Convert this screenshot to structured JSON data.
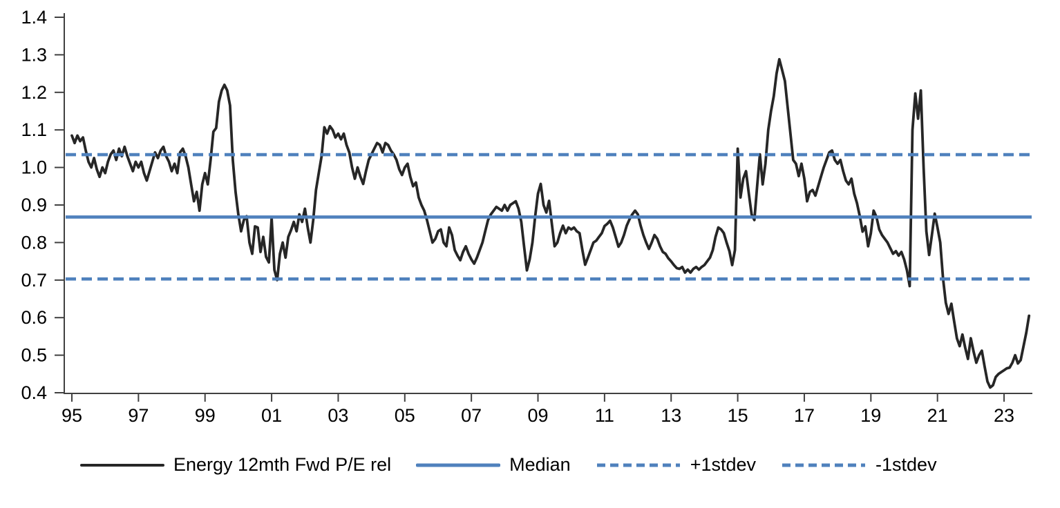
{
  "chart_data": {
    "type": "line",
    "title": "",
    "xlabel": "",
    "ylabel": "",
    "grid": false,
    "x_axis": {
      "tick_labels": [
        "95",
        "97",
        "99",
        "01",
        "03",
        "05",
        "07",
        "09",
        "11",
        "13",
        "15",
        "17",
        "19",
        "21",
        "23"
      ],
      "tick_years": [
        1995,
        1997,
        1999,
        2001,
        2003,
        2005,
        2007,
        2009,
        2011,
        2013,
        2015,
        2017,
        2019,
        2021,
        2023
      ],
      "range": [
        1994.78,
        2023.95
      ]
    },
    "y_axis": {
      "min": 0.4,
      "max": 1.4,
      "step": 0.1,
      "tick_labels": [
        "0.4",
        "0.5",
        "0.6",
        "0.7",
        "0.8",
        "0.9",
        "1.0",
        "1.1",
        "1.2",
        "1.3",
        "1.4"
      ]
    },
    "legend": {
      "position": "bottom"
    },
    "colors": {
      "series": "#262626",
      "bands": "#4F81BD",
      "axis": "#404040"
    },
    "series": [
      {
        "name": "Energy 12mth Fwd P/E rel",
        "kind": "line",
        "style": "solid",
        "color": "#262626",
        "start_year": 1995,
        "points_per_year": 12,
        "values": [
          1.085,
          1.065,
          1.085,
          1.07,
          1.08,
          1.045,
          1.015,
          1.0,
          1.025,
          0.995,
          0.975,
          1.0,
          0.985,
          1.015,
          1.035,
          1.045,
          1.02,
          1.05,
          1.03,
          1.055,
          1.03,
          1.01,
          0.99,
          1.015,
          1.0,
          1.015,
          0.985,
          0.965,
          0.99,
          1.015,
          1.04,
          1.025,
          1.045,
          1.055,
          1.03,
          1.015,
          0.99,
          1.01,
          0.985,
          1.04,
          1.05,
          1.03,
          1.0,
          0.955,
          0.91,
          0.935,
          0.885,
          0.955,
          0.985,
          0.955,
          1.02,
          1.095,
          1.105,
          1.175,
          1.205,
          1.22,
          1.205,
          1.165,
          1.02,
          0.935,
          0.875,
          0.83,
          0.86,
          0.87,
          0.8,
          0.77,
          0.843,
          0.84,
          0.775,
          0.815,
          0.762,
          0.747,
          0.865,
          0.727,
          0.7,
          0.77,
          0.8,
          0.76,
          0.815,
          0.833,
          0.855,
          0.83,
          0.875,
          0.855,
          0.89,
          0.84,
          0.8,
          0.86,
          0.94,
          0.985,
          1.03,
          1.107,
          1.09,
          1.11,
          1.1,
          1.08,
          1.09,
          1.075,
          1.09,
          1.06,
          1.04,
          1.0,
          0.97,
          1.0,
          0.975,
          0.956,
          0.99,
          1.02,
          1.035,
          1.05,
          1.065,
          1.06,
          1.04,
          1.065,
          1.06,
          1.045,
          1.035,
          1.02,
          0.995,
          0.98,
          1.0,
          1.01,
          0.975,
          0.95,
          0.96,
          0.92,
          0.9,
          0.885,
          0.86,
          0.83,
          0.8,
          0.81,
          0.83,
          0.835,
          0.8,
          0.79,
          0.84,
          0.82,
          0.78,
          0.765,
          0.753,
          0.775,
          0.79,
          0.77,
          0.755,
          0.744,
          0.76,
          0.78,
          0.8,
          0.83,
          0.86,
          0.875,
          0.885,
          0.895,
          0.89,
          0.885,
          0.9,
          0.885,
          0.9,
          0.905,
          0.91,
          0.89,
          0.855,
          0.79,
          0.726,
          0.755,
          0.8,
          0.87,
          0.93,
          0.956,
          0.9,
          0.88,
          0.911,
          0.85,
          0.79,
          0.8,
          0.825,
          0.845,
          0.825,
          0.84,
          0.835,
          0.84,
          0.83,
          0.825,
          0.78,
          0.741,
          0.76,
          0.78,
          0.8,
          0.805,
          0.815,
          0.825,
          0.844,
          0.85,
          0.858,
          0.84,
          0.815,
          0.789,
          0.8,
          0.82,
          0.845,
          0.862,
          0.875,
          0.885,
          0.875,
          0.845,
          0.82,
          0.8,
          0.783,
          0.8,
          0.82,
          0.81,
          0.79,
          0.775,
          0.77,
          0.758,
          0.75,
          0.74,
          0.732,
          0.73,
          0.735,
          0.72,
          0.728,
          0.72,
          0.73,
          0.735,
          0.728,
          0.735,
          0.74,
          0.75,
          0.76,
          0.78,
          0.815,
          0.84,
          0.835,
          0.825,
          0.8,
          0.777,
          0.74,
          0.78,
          1.05,
          0.92,
          0.97,
          0.99,
          0.93,
          0.875,
          0.86,
          0.95,
          1.035,
          0.955,
          1.01,
          1.1,
          1.15,
          1.19,
          1.25,
          1.288,
          1.26,
          1.23,
          1.16,
          1.09,
          1.02,
          1.01,
          0.977,
          1.01,
          0.97,
          0.91,
          0.935,
          0.94,
          0.925,
          0.95,
          0.975,
          1.0,
          1.02,
          1.04,
          1.045,
          1.02,
          1.01,
          1.02,
          0.99,
          0.965,
          0.955,
          0.97,
          0.93,
          0.905,
          0.87,
          0.829,
          0.843,
          0.79,
          0.825,
          0.885,
          0.868,
          0.835,
          0.82,
          0.81,
          0.8,
          0.785,
          0.77,
          0.777,
          0.765,
          0.775,
          0.755,
          0.726,
          0.684,
          1.1,
          1.197,
          1.13,
          1.205,
          1.0,
          0.83,
          0.767,
          0.82,
          0.877,
          0.84,
          0.8,
          0.705,
          0.64,
          0.61,
          0.637,
          0.59,
          0.545,
          0.524,
          0.555,
          0.52,
          0.49,
          0.545,
          0.51,
          0.48,
          0.5,
          0.512,
          0.47,
          0.43,
          0.414,
          0.42,
          0.442,
          0.45,
          0.455,
          0.46,
          0.465,
          0.467,
          0.48,
          0.5,
          0.478,
          0.487,
          0.523,
          0.56,
          0.605
        ]
      },
      {
        "name": "Median",
        "kind": "hline",
        "style": "solid",
        "color": "#4F81BD",
        "value": 0.868
      },
      {
        "name": "+1stdev",
        "kind": "hline",
        "style": "dashed",
        "color": "#4F81BD",
        "value": 1.034
      },
      {
        "name": "-1stdev",
        "kind": "hline",
        "style": "dashed",
        "color": "#4F81BD",
        "value": 0.703
      }
    ]
  }
}
